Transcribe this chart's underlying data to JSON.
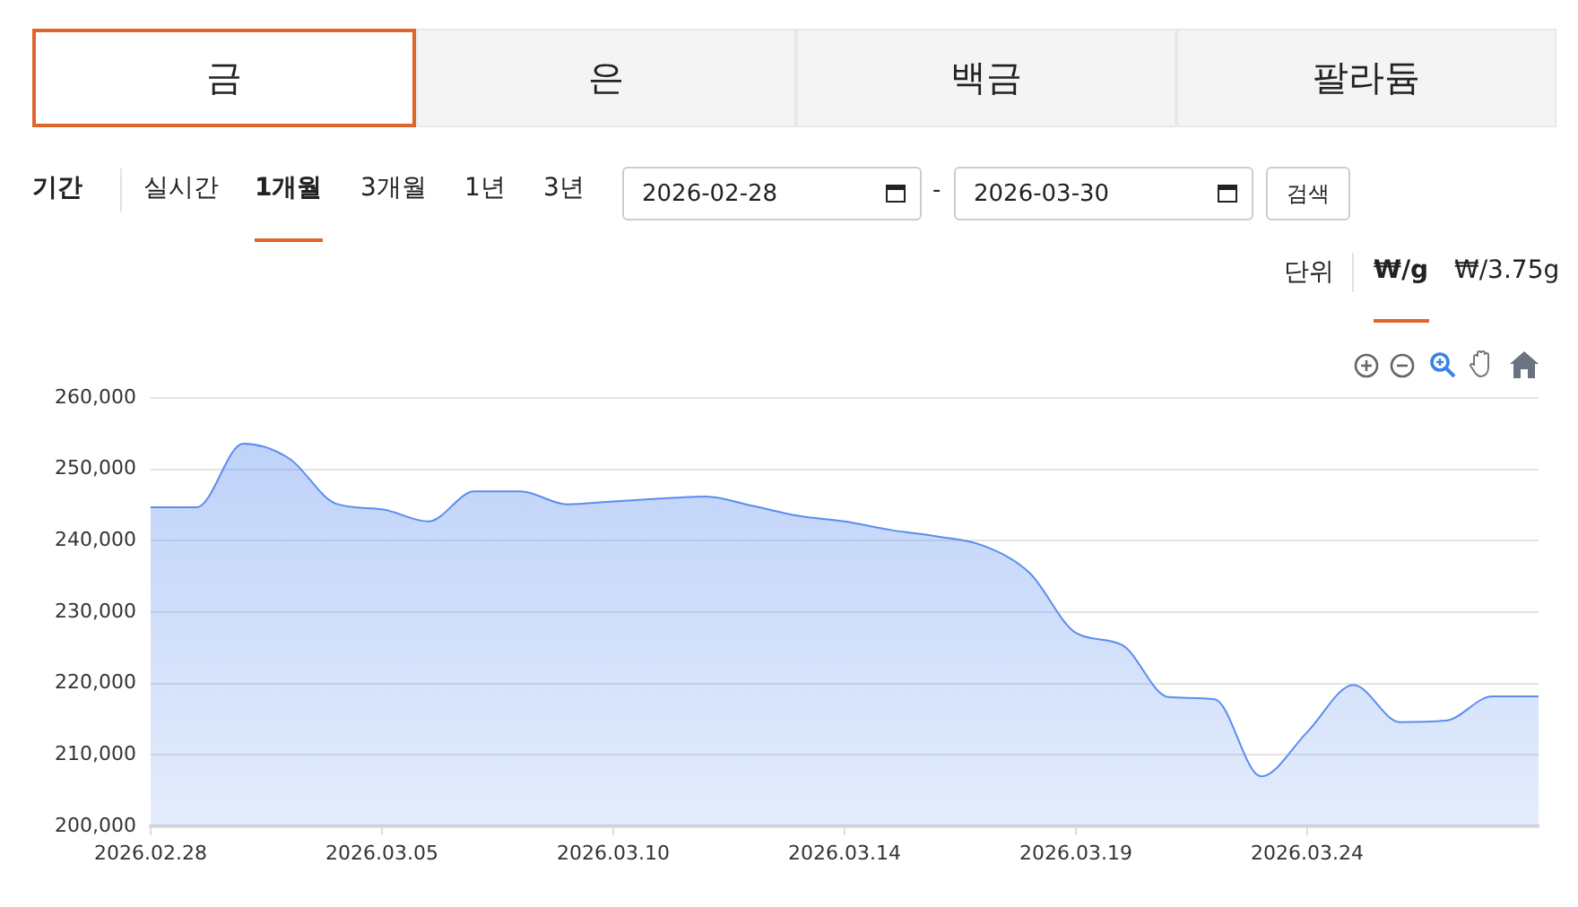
{
  "chart_data": {
    "type": "area",
    "annotations": [
      "금",
      "은",
      "백금",
      "팔라듐",
      "기간",
      "실시간",
      "1개월",
      "3개월",
      "1년",
      "3년",
      "2026-02-28",
      "-",
      "2026-03-30",
      "검색",
      "단위",
      "₩/g",
      "₩/3.75g"
    ],
    "categories": [
      "2026.02.28",
      null,
      null,
      null,
      null,
      "2026.03.05",
      null,
      null,
      null,
      null,
      "2026.03.10",
      null,
      null,
      null,
      null,
      "2026.03.14",
      null,
      null,
      null,
      null,
      "2026.03.19",
      null,
      null,
      null,
      null,
      "2026.03.24",
      null,
      null,
      null,
      null,
      null
    ],
    "series": [
      {
        "color": "#5b8def",
        "values": [
          244700,
          244700,
          253600,
          251500,
          245200,
          244400,
          242700,
          246900,
          246900,
          245100,
          245500,
          245900,
          246200,
          244900,
          243500,
          242700,
          241500,
          240600,
          239300,
          235500,
          227100,
          225400,
          218100,
          217800,
          207000,
          213200,
          219800,
          214600,
          214800,
          218200,
          218200
        ]
      }
    ],
    "ylim": [
      200000,
      260000
    ],
    "yticks": [
      {
        "value": 200000,
        "label": "200,000"
      },
      {
        "value": 210000,
        "label": "210,000"
      },
      {
        "value": 220000,
        "label": "220,000"
      },
      {
        "value": 230000,
        "label": "230,000"
      },
      {
        "value": 240000,
        "label": "240,000"
      },
      {
        "value": 250000,
        "label": "250,000"
      },
      {
        "value": 260000,
        "label": "260,000"
      }
    ],
    "grid": "y",
    "legend": false,
    "marker": "none",
    "line_style": "solid"
  }
}
